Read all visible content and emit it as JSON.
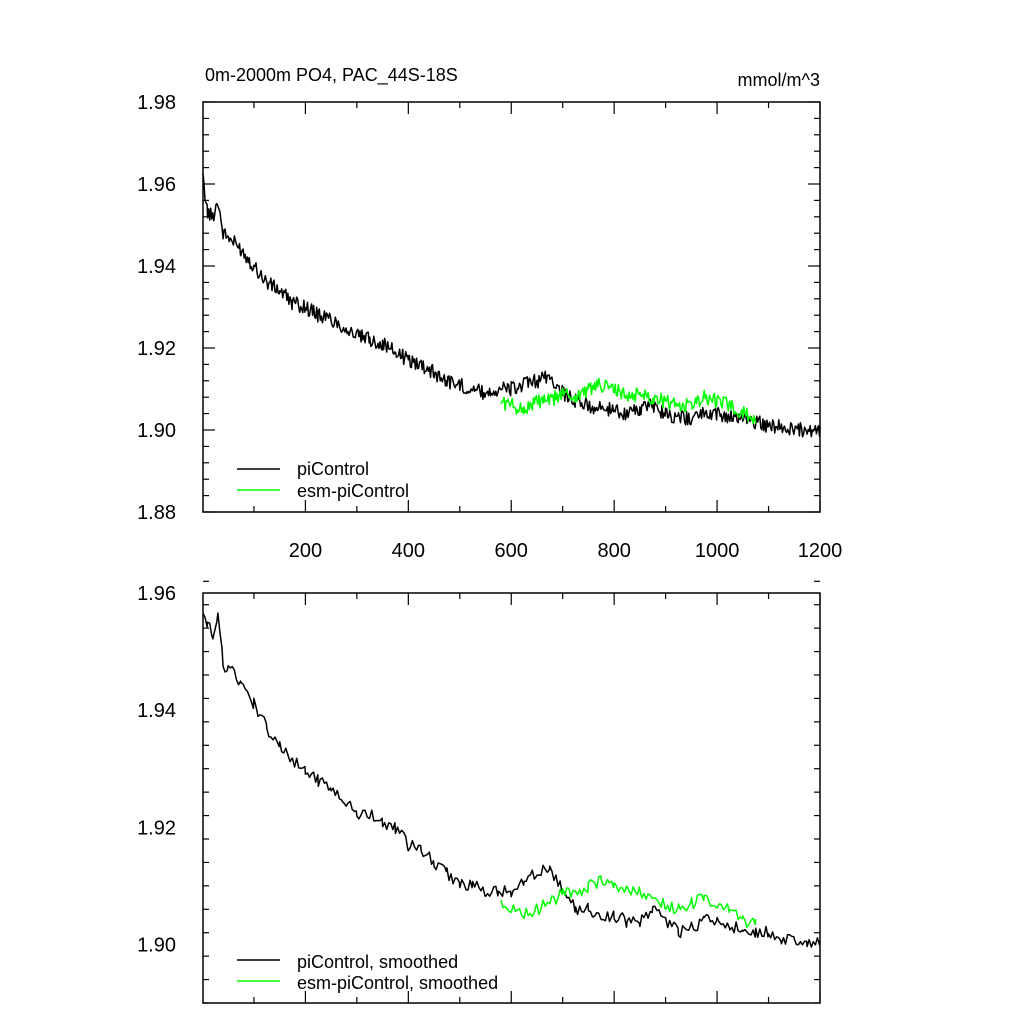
{
  "chart_data": [
    {
      "type": "line",
      "title_left": "0m-2000m PO4, PAC_44S-18S",
      "title_right": "mmol/m^3",
      "xlabel": "",
      "ylabel": "",
      "xlim": [
        1,
        1200
      ],
      "ylim": [
        1.88,
        1.98
      ],
      "x_ticks": [
        200,
        400,
        600,
        800,
        1000,
        1200
      ],
      "x_tick_labels": [
        "200",
        "400",
        "600",
        "800",
        "1000",
        "1200"
      ],
      "y_ticks": [
        1.88,
        1.9,
        1.92,
        1.94,
        1.96,
        1.98
      ],
      "y_tick_labels": [
        "1.88",
        "1.90",
        "1.92",
        "1.94",
        "1.96",
        "1.98"
      ],
      "grid": false,
      "legend_position": "bottom-left",
      "series": [
        {
          "name": "piControl",
          "color": "#000000",
          "x": [
            1,
            10,
            20,
            30,
            40,
            50,
            75,
            100,
            125,
            150,
            175,
            200,
            225,
            250,
            275,
            300,
            325,
            350,
            375,
            400,
            425,
            450,
            475,
            500,
            525,
            550,
            575,
            600,
            625,
            650,
            675,
            700,
            725,
            750,
            775,
            800,
            825,
            850,
            875,
            900,
            925,
            950,
            975,
            1000,
            1025,
            1050,
            1075,
            1100,
            1125,
            1150,
            1175,
            1200
          ],
          "y": [
            1.961,
            1.953,
            1.952,
            1.956,
            1.948,
            1.947,
            1.944,
            1.94,
            1.936,
            1.934,
            1.931,
            1.93,
            1.928,
            1.927,
            1.925,
            1.923,
            1.922,
            1.921,
            1.919,
            1.917,
            1.916,
            1.914,
            1.912,
            1.911,
            1.91,
            1.909,
            1.91,
            1.91,
            1.911,
            1.912,
            1.913,
            1.909,
            1.907,
            1.906,
            1.905,
            1.905,
            1.904,
            1.905,
            1.906,
            1.904,
            1.903,
            1.903,
            1.904,
            1.904,
            1.903,
            1.903,
            1.902,
            1.901,
            1.901,
            1.9,
            1.9,
            1.9
          ]
        },
        {
          "name": "esm-piControl",
          "color": "#00ff00",
          "x": [
            580,
            600,
            625,
            650,
            675,
            700,
            725,
            750,
            775,
            800,
            825,
            850,
            875,
            900,
            925,
            950,
            975,
            1000,
            1025,
            1050,
            1075
          ],
          "y": [
            1.907,
            1.906,
            1.905,
            1.907,
            1.907,
            1.909,
            1.908,
            1.91,
            1.911,
            1.91,
            1.908,
            1.909,
            1.908,
            1.907,
            1.906,
            1.906,
            1.908,
            1.907,
            1.906,
            1.904,
            1.903
          ]
        }
      ]
    },
    {
      "type": "line",
      "xlabel": "",
      "ylabel": "",
      "xlim": [
        1,
        1200
      ],
      "ylim": [
        1.89,
        1.96
      ],
      "x_ticks": [
        200,
        400,
        600,
        800,
        1000,
        1200
      ],
      "y_ticks": [
        1.9,
        1.92,
        1.94,
        1.96
      ],
      "y_tick_labels": [
        "1.90",
        "1.92",
        "1.94",
        "1.96"
      ],
      "grid": false,
      "legend_position": "bottom-left",
      "series": [
        {
          "name": "piControl, smoothed",
          "color": "#000000",
          "x": [
            1,
            10,
            20,
            30,
            40,
            50,
            75,
            100,
            125,
            150,
            175,
            200,
            225,
            250,
            275,
            300,
            325,
            350,
            375,
            400,
            425,
            450,
            475,
            500,
            525,
            550,
            575,
            600,
            625,
            650,
            675,
            700,
            725,
            750,
            775,
            800,
            825,
            850,
            875,
            900,
            925,
            950,
            975,
            1000,
            1025,
            1050,
            1075,
            1100,
            1125,
            1150,
            1175,
            1200
          ],
          "y": [
            1.957,
            1.955,
            1.952,
            1.956,
            1.948,
            1.947,
            1.945,
            1.941,
            1.937,
            1.934,
            1.931,
            1.93,
            1.928,
            1.927,
            1.925,
            1.922,
            1.922,
            1.921,
            1.92,
            1.917,
            1.916,
            1.914,
            1.912,
            1.91,
            1.91,
            1.909,
            1.909,
            1.909,
            1.911,
            1.912,
            1.913,
            1.909,
            1.906,
            1.906,
            1.905,
            1.905,
            1.904,
            1.904,
            1.906,
            1.904,
            1.902,
            1.903,
            1.904,
            1.904,
            1.903,
            1.903,
            1.902,
            1.902,
            1.901,
            1.901,
            1.9,
            1.901
          ]
        },
        {
          "name": "esm-piControl, smoothed",
          "color": "#00ff00",
          "x": [
            580,
            600,
            625,
            650,
            675,
            700,
            725,
            750,
            775,
            800,
            825,
            850,
            875,
            900,
            925,
            950,
            975,
            1000,
            1025,
            1050,
            1075
          ],
          "y": [
            1.907,
            1.906,
            1.905,
            1.906,
            1.907,
            1.909,
            1.908,
            1.91,
            1.911,
            1.91,
            1.909,
            1.909,
            1.908,
            1.907,
            1.906,
            1.907,
            1.908,
            1.907,
            1.906,
            1.904,
            1.904
          ]
        }
      ]
    }
  ]
}
